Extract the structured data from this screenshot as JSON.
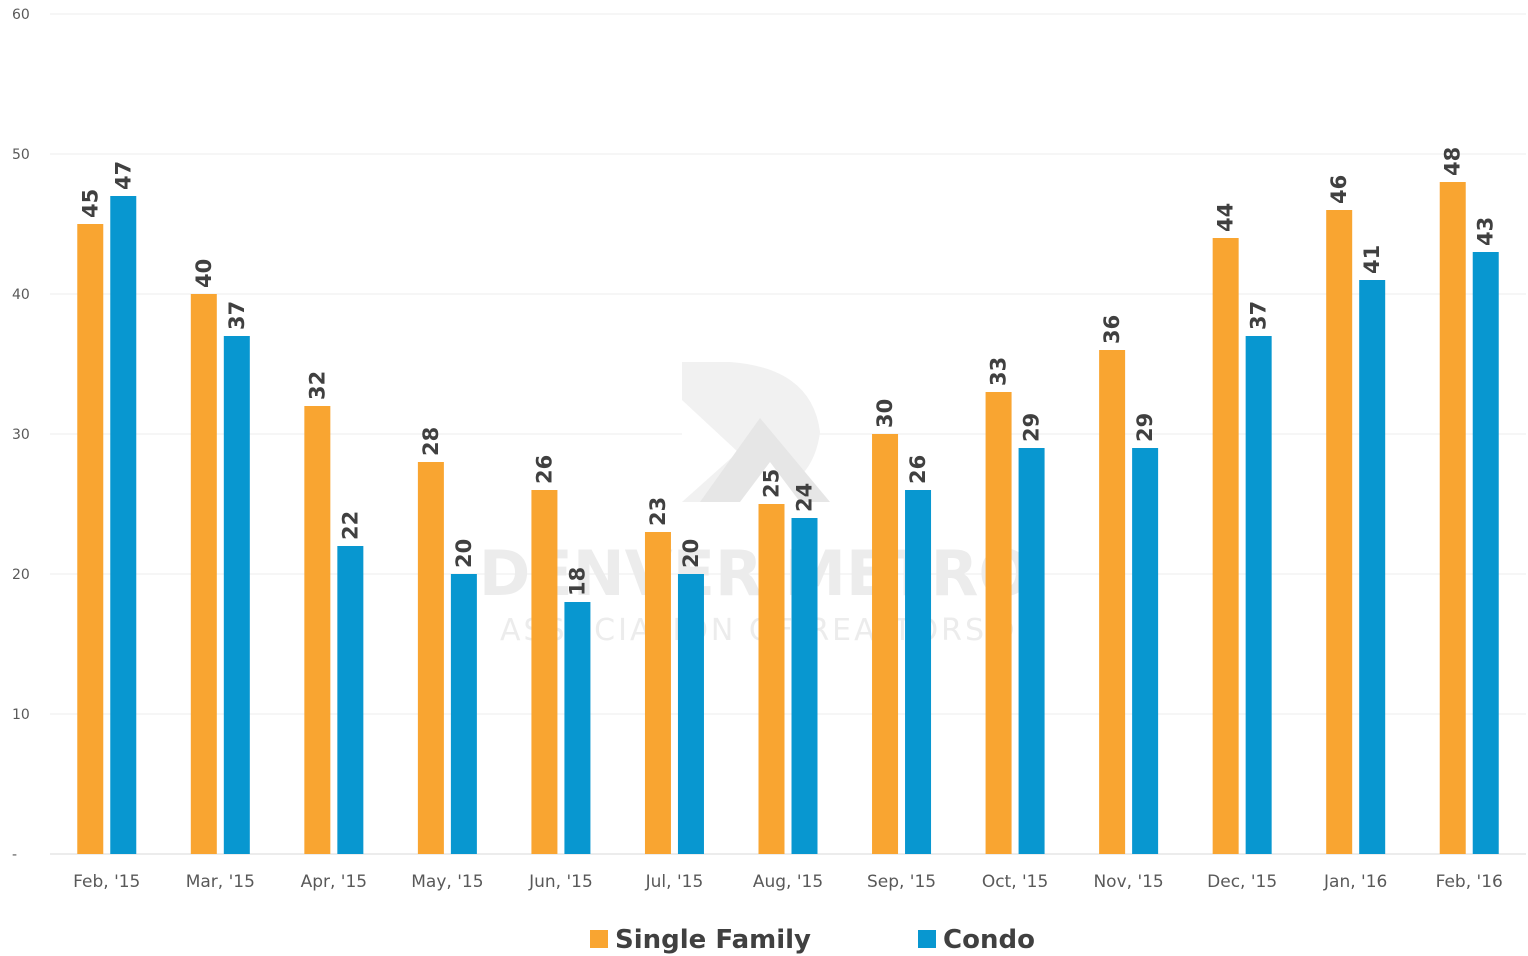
{
  "chart_data": {
    "type": "bar",
    "categories": [
      "Feb, '15",
      "Mar, '15",
      "Apr, '15",
      "May, '15",
      "Jun, '15",
      "Jul, '15",
      "Aug, '15",
      "Sep, '15",
      "Oct, '15",
      "Nov, '15",
      "Dec, '15",
      "Jan, '16",
      "Feb, '16"
    ],
    "series": [
      {
        "name": "Single Family",
        "color": "#f9a531",
        "values": [
          45,
          40,
          32,
          28,
          26,
          23,
          25,
          30,
          33,
          36,
          44,
          46,
          48
        ]
      },
      {
        "name": "Condo",
        "color": "#0897d0",
        "values": [
          47,
          37,
          22,
          20,
          18,
          20,
          24,
          26,
          29,
          29,
          37,
          41,
          43
        ]
      }
    ],
    "yticks": [
      "-",
      "10",
      "20",
      "30",
      "40",
      "50",
      "60"
    ],
    "ylim": [
      0,
      60
    ],
    "grid": true,
    "legend": "bottom-center"
  },
  "watermark": {
    "line1": "DENVER METRO",
    "line2": "ASSOCIATION OF REALTORS®"
  }
}
